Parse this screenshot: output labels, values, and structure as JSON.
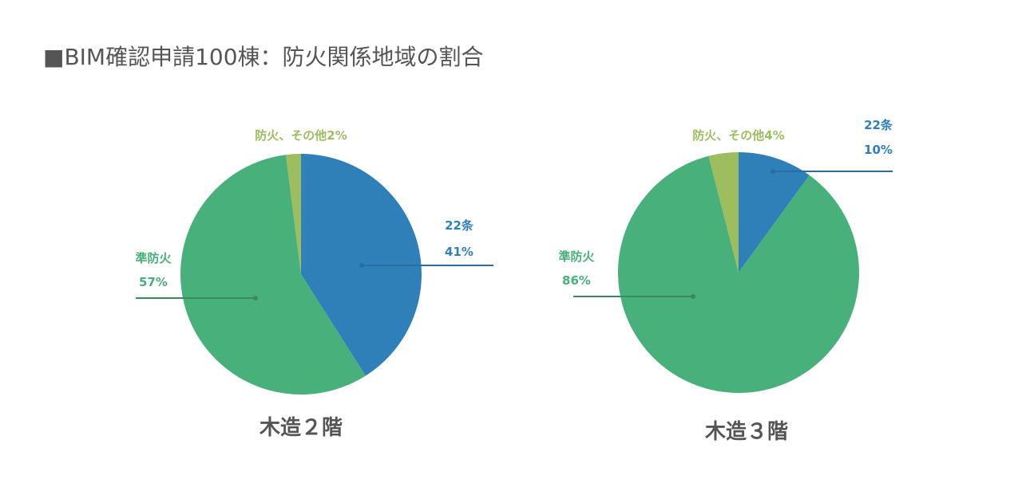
{
  "title": "■BIM確認申請100棟：防火関係地域の割合",
  "colors": {
    "22条": "#2f80b9",
    "準防火": "#48b07a",
    "防火、その他": "#9ebd5f",
    "title": "#555555"
  },
  "chart_data": [
    {
      "type": "pie",
      "caption": "木造２階",
      "slices": [
        {
          "name": "22条",
          "label": "22条",
          "value": 41,
          "value_label": "41%"
        },
        {
          "name": "準防火",
          "label": "準防火",
          "value": 57,
          "value_label": "57%"
        },
        {
          "name": "防火、その他",
          "label": "防火、その他",
          "value": 2,
          "value_label": "2%"
        }
      ]
    },
    {
      "type": "pie",
      "caption": "木造３階",
      "slices": [
        {
          "name": "22条",
          "label": "22条",
          "value": 10,
          "value_label": "10%"
        },
        {
          "name": "準防火",
          "label": "準防火",
          "value": 86,
          "value_label": "86%"
        },
        {
          "name": "防火、その他",
          "label": "防火、その他",
          "value": 4,
          "value_label": "4%"
        }
      ]
    }
  ]
}
